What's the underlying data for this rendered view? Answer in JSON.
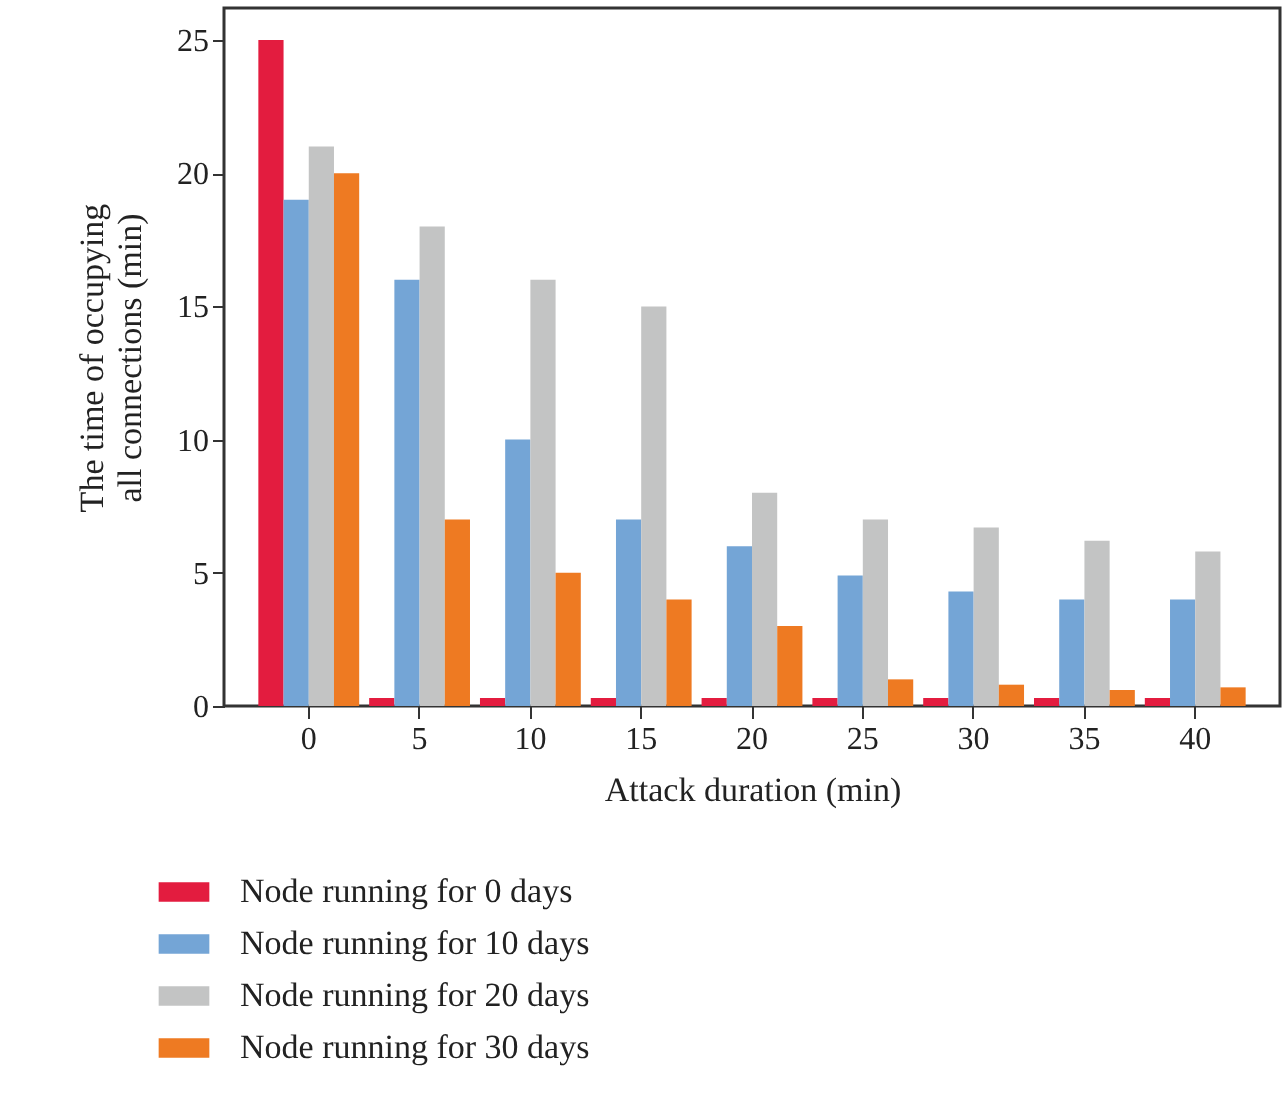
{
  "chart_data": {
    "type": "bar",
    "xlabel": "Attack duration (min)",
    "ylabel": "The time of occupying all connections (min)",
    "categories": [
      "0",
      "5",
      "10",
      "15",
      "20",
      "25",
      "30",
      "35",
      "40"
    ],
    "series": [
      {
        "name": "Node running for 0 days",
        "color": "#e31c3f",
        "values": [
          25,
          0.3,
          0.3,
          0.3,
          0.3,
          0.3,
          0.3,
          0.3,
          0.3
        ]
      },
      {
        "name": "Node running for 10 days",
        "color": "#74a5d6",
        "values": [
          19,
          16,
          10,
          7,
          6,
          4.9,
          4.3,
          4,
          4
        ]
      },
      {
        "name": "Node running for 20 days",
        "color": "#c3c4c4",
        "values": [
          21,
          18,
          16,
          15,
          8,
          7,
          6.7,
          6.2,
          5.8
        ]
      },
      {
        "name": "Node running for 30 days",
        "color": "#ee7a22",
        "values": [
          20,
          7,
          5,
          4,
          3,
          1,
          0.8,
          0.6,
          0.7
        ]
      }
    ],
    "ylim": [
      0,
      26.2
    ],
    "yticks": [
      0,
      5,
      10,
      15,
      20,
      25
    ],
    "grid": false,
    "legend": "bottom"
  }
}
